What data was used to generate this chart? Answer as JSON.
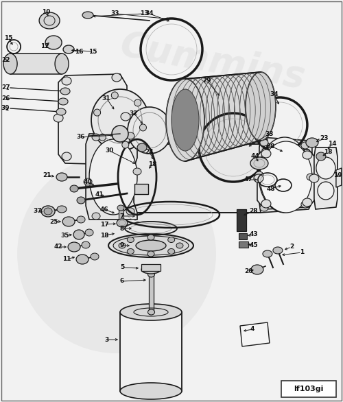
{
  "bg_color": "#f2f2f2",
  "fig_width": 5.0,
  "fig_height": 5.86,
  "dpi": 100,
  "watermark_text": "Cummins",
  "label_fontsize": 6.5,
  "label_color": "#111111",
  "line_color": "#1a1a1a",
  "badge_text": "lf103gi"
}
